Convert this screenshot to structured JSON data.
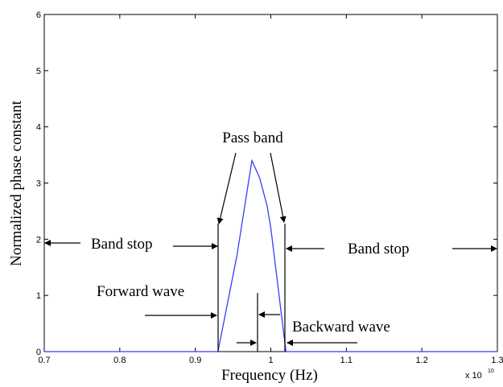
{
  "chart_data": {
    "type": "line",
    "xlabel": "Frequency (Hz)",
    "ylabel": "Normalized phase constant",
    "x_multiplier": {
      "base": "x 10",
      "exponent": "10"
    },
    "xlim": [
      0.7,
      1.3
    ],
    "ylim": [
      0,
      6
    ],
    "x_ticks": [
      "0.7",
      "0.8",
      "0.9",
      "1",
      "1.1",
      "1.2",
      "1.3"
    ],
    "y_ticks": [
      "0",
      "1",
      "2",
      "3",
      "4",
      "5",
      "6"
    ],
    "grid": false,
    "series_color": "#3b3bff",
    "series": [
      {
        "x": [
          0.7,
          0.93,
          0.955,
          0.975,
          0.985,
          0.995,
          1.0,
          1.01,
          1.02,
          1.3
        ],
        "y": [
          0,
          0,
          1.7,
          3.4,
          3.1,
          2.6,
          2.2,
          1.1,
          0,
          0
        ]
      }
    ],
    "annotations": {
      "pass_band": "Pass band",
      "band_stop_left": "Band stop",
      "band_stop_right": "Band stop",
      "forward_wave": "Forward wave",
      "backward_wave": "Backward wave"
    }
  }
}
